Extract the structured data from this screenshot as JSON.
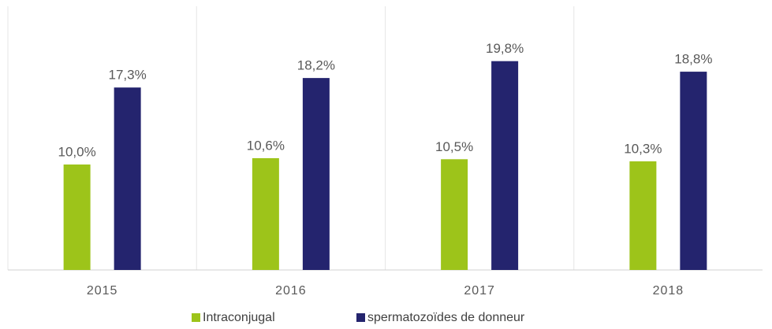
{
  "chart_data": {
    "type": "bar",
    "categories": [
      "2015",
      "2016",
      "2017",
      "2018"
    ],
    "series": [
      {
        "name": "Intraconjugal",
        "color": "#9dc41a",
        "values": [
          10.0,
          10.6,
          10.5,
          10.3
        ],
        "value_labels": [
          "10,0%",
          "10,6%",
          "10,5%",
          "10,3%"
        ]
      },
      {
        "name": "spermatozoïdes de donneur",
        "color": "#24246e",
        "values": [
          17.3,
          18.2,
          19.8,
          18.8
        ],
        "value_labels": [
          "17,3%",
          "18,2%",
          "19,8%",
          "18,8%"
        ]
      }
    ],
    "ylim": [
      0,
      25
    ],
    "legend": "bottom"
  }
}
